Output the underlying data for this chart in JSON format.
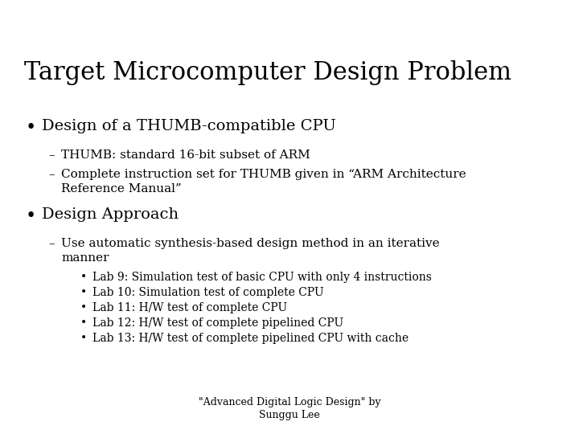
{
  "title": "Target Microcomputer Design Problem",
  "title_fontsize": 22,
  "title_font": "DejaVu Serif",
  "background_color": "#ffffff",
  "text_color": "#000000",
  "bullet1": "Design of a THUMB-compatible CPU",
  "bullet1_fontsize": 14,
  "sub1a": "THUMB: standard 16-bit subset of ARM",
  "sub1b_line1": "Complete instruction set for THUMB given in “ARM Architecture",
  "sub1b_line2": "Reference Manual”",
  "bullet2": "Design Approach",
  "bullet2_fontsize": 14,
  "sub2a_line1": "Use automatic synthesis-based design method in an iterative",
  "sub2a_line2": "manner",
  "labs": [
    "Lab 9: Simulation test of basic CPU with only 4 instructions",
    "Lab 10: Simulation test of complete CPU",
    "Lab 11: H/W test of complete CPU",
    "Lab 12: H/W test of complete pipelined CPU",
    "Lab 13: H/W test of complete pipelined CPU with cache"
  ],
  "footer_line1": "\"Advanced Digital Logic Design\" by",
  "footer_line2": "Sunggu Lee",
  "footer_fontsize": 9,
  "sub_fontsize": 11,
  "lab_fontsize": 10,
  "bullet_symbol_fontsize": 14,
  "dash_fontsize": 11
}
